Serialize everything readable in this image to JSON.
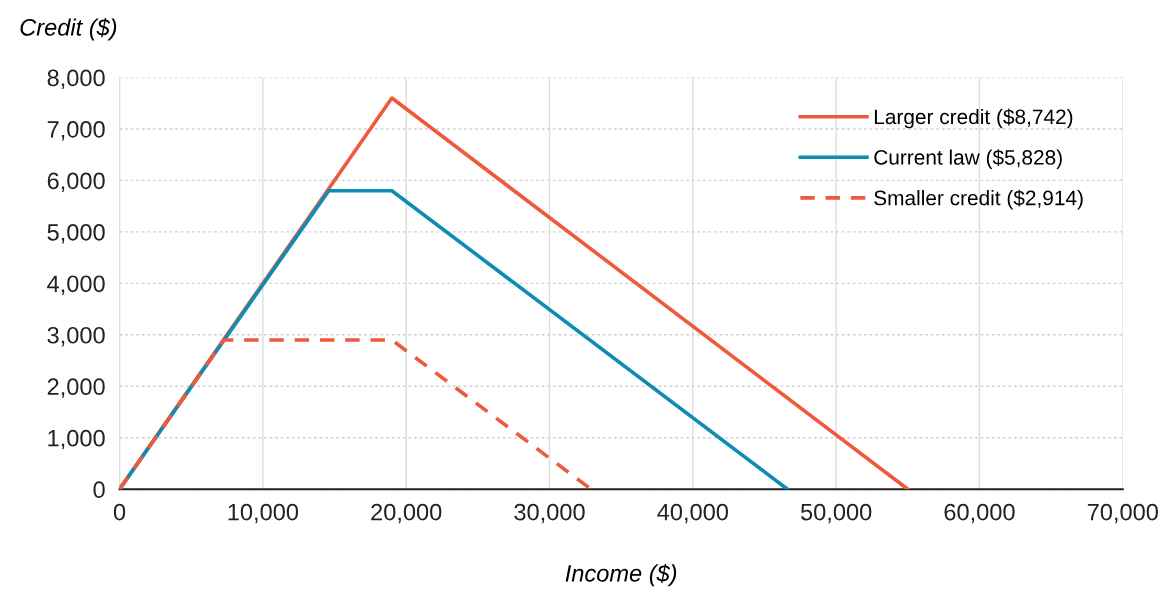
{
  "chart_data": {
    "type": "line",
    "xlabel": "Income ($)",
    "ylabel": "Credit ($)",
    "xlim": [
      0,
      70000
    ],
    "xticks": [
      {
        "value": 0,
        "label": "0"
      },
      {
        "value": 10000,
        "label": "10,000"
      },
      {
        "value": 20000,
        "label": "20,000"
      },
      {
        "value": 30000,
        "label": "30,000"
      },
      {
        "value": 40000,
        "label": "40,000"
      },
      {
        "value": 50000,
        "label": "50,000"
      },
      {
        "value": 60000,
        "label": "60,000"
      },
      {
        "value": 70000,
        "label": "70,000"
      }
    ],
    "ylim": [
      0,
      8000
    ],
    "yticks": [
      {
        "value": 0,
        "label": "0"
      },
      {
        "value": 1000,
        "label": "1,000"
      },
      {
        "value": 2000,
        "label": "2,000"
      },
      {
        "value": 3000,
        "label": "3,000"
      },
      {
        "value": 4000,
        "label": "4,000"
      },
      {
        "value": 5000,
        "label": "5,000"
      },
      {
        "value": 6000,
        "label": "6,000"
      },
      {
        "value": 7000,
        "label": "7,000"
      },
      {
        "value": 8000,
        "label": "8,000"
      }
    ],
    "grid": true,
    "legend": "top right",
    "marker": "none",
    "series": [
      {
        "name": "Larger credit ($8,742)",
        "color": "#f05a3c",
        "line_style": "solid",
        "x": [
          0,
          19000,
          55000
        ],
        "values": [
          0,
          7600,
          0
        ]
      },
      {
        "name": "Current law ($5,828)",
        "color": "#0f8cb4",
        "line_style": "solid",
        "x": [
          0,
          14600,
          19000,
          46600
        ],
        "values": [
          0,
          5800,
          5800,
          0
        ]
      },
      {
        "name": "Smaller credit ($2,914)",
        "color": "#f05a3c",
        "line_style": "dashed",
        "x": [
          0,
          7300,
          19000,
          32900
        ],
        "values": [
          0,
          2900,
          2900,
          0
        ]
      }
    ]
  }
}
